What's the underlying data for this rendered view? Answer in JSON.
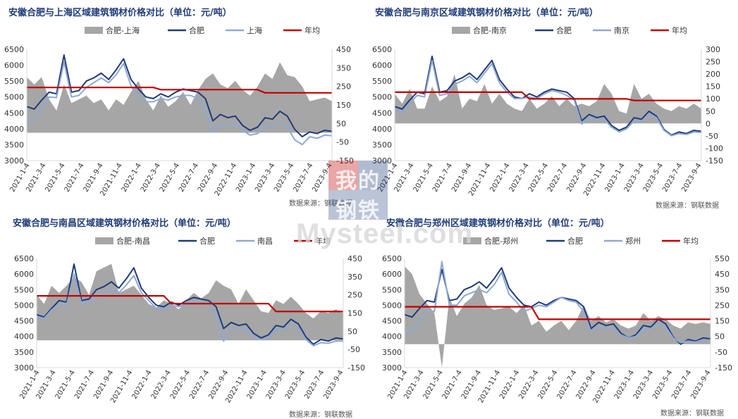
{
  "chart_data": [
    {
      "type": "line",
      "title": "安徽合肥与上海区域建筑钢材价格对比（单位：元/吨）",
      "source": "数据来源：钢联数据",
      "legend": [
        "合肥-上海",
        "合肥",
        "上海",
        "年均"
      ],
      "legend_position": "top",
      "y_left": {
        "min": 3000,
        "max": 6500,
        "ticks": [
          "3000",
          "3500",
          "4000",
          "4500",
          "5000",
          "5500",
          "6000",
          "6500"
        ]
      },
      "y_right": {
        "min": -150,
        "max": 450,
        "ticks": [
          "-150",
          "-50",
          "50",
          "150",
          "250",
          "350",
          "450"
        ]
      },
      "x_ticks": [
        "2021-1-4",
        "2021-3-4",
        "2021-5-4",
        "2021-7-4",
        "2021-9-4",
        "2021-11-4",
        "2022-1-4",
        "2022-3-4",
        "2022-5-4",
        "2022-7-4",
        "2022-9-4",
        "2022-11-4",
        "2023-1-4",
        "2023-3-4",
        "2023-5-4",
        "2023-7-4",
        "2023-9-4"
      ],
      "series": [
        {
          "name": "合肥",
          "values": [
            4700,
            4620,
            4900,
            5150,
            5100,
            6320,
            5150,
            5200,
            5500,
            5600,
            5750,
            5550,
            5850,
            6200,
            5550,
            5250,
            5000,
            4950,
            5100,
            5000,
            5150,
            5250,
            5200,
            5150,
            4950,
            4250,
            4450,
            4350,
            4400,
            4100,
            3950,
            4050,
            4350,
            4300,
            4550,
            4400,
            3980,
            3750,
            3900,
            3850,
            3950,
            3920
          ]
        },
        {
          "name": "上海",
          "values": [
            4350,
            4300,
            4600,
            5000,
            4980,
            6100,
            5000,
            5050,
            5300,
            5450,
            5600,
            5450,
            5700,
            6050,
            5350,
            4950,
            4850,
            4850,
            4950,
            4900,
            5000,
            5050,
            5050,
            4950,
            4600,
            3900,
            4150,
            4100,
            4150,
            3950,
            3800,
            3850,
            4100,
            4050,
            4200,
            4050,
            3650,
            3500,
            3750,
            3700,
            3800,
            3780
          ]
        },
        {
          "name": "年均",
          "values": [
            5300,
            5300,
            5300,
            5300,
            5300,
            5300,
            5300,
            5300,
            5300,
            5300,
            5300,
            5300,
            5300,
            5300,
            5300,
            5300,
            5300,
            5300,
            5230,
            5230,
            5230,
            5230,
            5230,
            5230,
            5230,
            5230,
            5230,
            5230,
            5230,
            5230,
            5230,
            5230,
            5130,
            5130,
            5130,
            5130,
            5130,
            5130,
            5130,
            5130,
            5130,
            5130
          ]
        },
        {
          "name": "合肥-上海",
          "axis": "right",
          "values": [
            300,
            260,
            300,
            180,
            120,
            260,
            160,
            180,
            200,
            160,
            180,
            120,
            180,
            150,
            220,
            280,
            180,
            120,
            200,
            140,
            170,
            220,
            150,
            230,
            290,
            320,
            260,
            240,
            280,
            230,
            200,
            250,
            320,
            290,
            380,
            310,
            300,
            250,
            170,
            180,
            190,
            170
          ]
        }
      ]
    },
    {
      "type": "line",
      "title": "安徽合肥与南京区域建筑钢材价格对比（单位：元/吨）",
      "source": "数据来源：钢联数据",
      "legend": [
        "合肥-南京",
        "合肥",
        "南京",
        "年均"
      ],
      "legend_position": "top",
      "y_left": {
        "min": 3000,
        "max": 6500,
        "ticks": [
          "3000",
          "3500",
          "4000",
          "4500",
          "5000",
          "5500",
          "6000",
          "6500"
        ]
      },
      "y_right": {
        "min": -150,
        "max": 300,
        "ticks": [
          "-150",
          "-100",
          "-50",
          "0",
          "50",
          "100",
          "150",
          "200",
          "250",
          "300"
        ]
      },
      "x_ticks": [
        "2021-1-4",
        "2021-3-4",
        "2021-5-4",
        "2021-7-4",
        "2021-9-4",
        "2021-11-4",
        "2022-1-4",
        "2022-3-4",
        "2022-5-4",
        "2022-7-4",
        "2022-9-4",
        "2022-11-4",
        "2023-1-4",
        "2023-3-4",
        "2023-5-4",
        "2023-7-4",
        "2023-9-4"
      ],
      "series": [
        {
          "name": "合肥",
          "values": [
            4700,
            4620,
            4900,
            5150,
            5100,
            6280,
            5150,
            5200,
            5500,
            5600,
            5750,
            5550,
            5850,
            6150,
            5550,
            5250,
            5000,
            4950,
            5100,
            5000,
            5150,
            5250,
            5200,
            5150,
            4950,
            4250,
            4450,
            4350,
            4400,
            4100,
            3950,
            4050,
            4350,
            4300,
            4550,
            4400,
            3980,
            3800,
            3900,
            3850,
            3950,
            3920
          ]
        },
        {
          "name": "南京",
          "values": [
            4600,
            4550,
            4800,
            5050,
            5000,
            6150,
            5050,
            5100,
            5400,
            5500,
            5650,
            5450,
            5750,
            6050,
            5450,
            5150,
            4950,
            4950,
            5000,
            4950,
            5100,
            5200,
            5150,
            5050,
            4900,
            4150,
            4350,
            4300,
            4300,
            4050,
            3900,
            4000,
            4250,
            4250,
            4450,
            4350,
            3950,
            3780,
            3850,
            3820,
            3900,
            3880
          ]
        },
        {
          "name": "年均",
          "values": [
            5150,
            5150,
            5150,
            5150,
            5150,
            5150,
            5150,
            5150,
            5150,
            5150,
            5150,
            5150,
            5150,
            5150,
            5150,
            5150,
            5150,
            5150,
            4940,
            4940,
            4940,
            4940,
            4940,
            4940,
            4940,
            4940,
            4940,
            4940,
            4940,
            4940,
            4940,
            4940,
            4890,
            4890,
            4890,
            4890,
            4890,
            4890,
            4890,
            4890,
            4890,
            4890
          ]
        },
        {
          "name": "合肥-南京",
          "axis": "right",
          "values": [
            120,
            80,
            140,
            60,
            60,
            150,
            90,
            110,
            200,
            60,
            100,
            90,
            160,
            80,
            120,
            80,
            60,
            50,
            100,
            60,
            80,
            110,
            70,
            100,
            70,
            80,
            70,
            90,
            160,
            120,
            50,
            40,
            160,
            100,
            120,
            80,
            60,
            50,
            70,
            60,
            80,
            60
          ]
        }
      ]
    },
    {
      "type": "line",
      "title": "安徽合肥与南昌区域建筑钢材价格对比（单位：元/吨）",
      "source": "数据来源：钢联数据",
      "legend": [
        "合肥-南昌",
        "合肥",
        "南昌",
        "年均"
      ],
      "legend_position": "top",
      "y_left": {
        "min": 3000,
        "max": 6500,
        "ticks": [
          "3000",
          "3500",
          "4000",
          "4500",
          "5000",
          "5500",
          "6000",
          "6500"
        ]
      },
      "y_right": {
        "min": -150,
        "max": 450,
        "ticks": [
          "-150",
          "-50",
          "50",
          "150",
          "250",
          "350",
          "450"
        ]
      },
      "x_ticks": [
        "2021-1-4",
        "2021-3-4",
        "2021-5-4",
        "2021-7-4",
        "2021-9-4",
        "2021-11-4",
        "2022-1-4",
        "2022-3-4",
        "2022-5-4",
        "2022-7-4",
        "2022-9-4",
        "2022-11-4",
        "2023-1-4",
        "2023-3-4",
        "2023-5-4",
        "2023-7-4",
        "2023-9-4"
      ],
      "series": [
        {
          "name": "合肥",
          "values": [
            4700,
            4620,
            4900,
            5150,
            5100,
            6320,
            5150,
            5200,
            5500,
            5600,
            5750,
            5550,
            5850,
            6200,
            5550,
            5250,
            5000,
            4950,
            5100,
            5000,
            5150,
            5250,
            5200,
            5150,
            4950,
            4250,
            4450,
            4350,
            4400,
            4100,
            3950,
            4050,
            4350,
            4300,
            4550,
            4400,
            3980,
            3750,
            3900,
            3850,
            3950,
            3920
          ]
        },
        {
          "name": "南昌",
          "values": [
            4650,
            4580,
            4850,
            5050,
            5000,
            6000,
            5050,
            5050,
            5300,
            5350,
            5500,
            5400,
            5650,
            5950,
            5400,
            5150,
            4900,
            4900,
            5000,
            4950,
            5050,
            5150,
            5100,
            5050,
            4700,
            3850,
            4250,
            4200,
            4250,
            4000,
            3900,
            3950,
            4250,
            4200,
            4400,
            4300,
            3900,
            3700,
            3800,
            3780,
            3850,
            3850
          ]
        },
        {
          "name": "年均",
          "values": [
            5300,
            5300,
            5300,
            5300,
            5300,
            5300,
            5300,
            5300,
            5300,
            5300,
            5300,
            5300,
            5300,
            5300,
            5300,
            5300,
            5300,
            5300,
            5050,
            5050,
            5050,
            5050,
            5050,
            5050,
            5050,
            5050,
            5050,
            5050,
            5050,
            5050,
            5050,
            5050,
            4800,
            4800,
            4800,
            4800,
            4800,
            4800,
            4800,
            4800,
            4800,
            4800
          ]
        },
        {
          "name": "合肥-南昌",
          "axis": "right",
          "values": [
            250,
            200,
            300,
            260,
            300,
            350,
            320,
            250,
            380,
            400,
            420,
            260,
            280,
            300,
            250,
            200,
            180,
            220,
            200,
            170,
            220,
            260,
            230,
            260,
            330,
            300,
            280,
            200,
            280,
            220,
            160,
            150,
            220,
            200,
            240,
            200,
            150,
            120,
            160,
            150,
            170,
            150
          ]
        }
      ]
    },
    {
      "type": "line",
      "title": "安徽合肥与郑州区域建筑钢材价格对比（单位：元/吨）",
      "source": "数据来源：钢联数据",
      "legend": [
        "合肥-郑州",
        "合肥",
        "郑州",
        "年均"
      ],
      "legend_position": "top",
      "y_left": {
        "min": 3000,
        "max": 6500,
        "ticks": [
          "3000",
          "3500",
          "4000",
          "4500",
          "5000",
          "5500",
          "6000",
          "6500"
        ]
      },
      "y_right": {
        "min": -150,
        "max": 550,
        "ticks": [
          "-150",
          "-50",
          "50",
          "150",
          "250",
          "350",
          "450",
          "550"
        ]
      },
      "x_ticks": [
        "2021-1-4",
        "2021-3-4",
        "2021-5-4",
        "2021-7-4",
        "2021-9-4",
        "2021-11-4",
        "2022-1-4",
        "2022-3-4",
        "2022-5-4",
        "2022-7-4",
        "2022-9-4",
        "2022-11-4",
        "2023-1-4",
        "2023-3-4",
        "2023-5-4",
        "2023-7-4",
        "2023-9-4"
      ],
      "series": [
        {
          "name": "合肥",
          "values": [
            4700,
            4620,
            4900,
            5150,
            5100,
            6150,
            5150,
            5200,
            5500,
            5600,
            5750,
            5550,
            5850,
            6200,
            5550,
            5250,
            5000,
            4950,
            5100,
            5000,
            5150,
            5250,
            5200,
            5150,
            4950,
            4250,
            4450,
            4350,
            4400,
            4100,
            3950,
            4050,
            4350,
            4300,
            4550,
            4400,
            3980,
            3750,
            3900,
            3850,
            3950,
            3920
          ]
        },
        {
          "name": "郑州",
          "values": [
            4200,
            4150,
            4500,
            4850,
            4800,
            6400,
            5000,
            5000,
            5300,
            5400,
            5500,
            5400,
            5650,
            6050,
            5350,
            5100,
            4800,
            4900,
            5000,
            4950,
            5100,
            5250,
            5150,
            5100,
            4800,
            4150,
            4300,
            4250,
            4250,
            4050,
            3950,
            4000,
            4250,
            4250,
            4450,
            4300,
            3950,
            3800,
            3850,
            3820,
            3900,
            3880
          ]
        },
        {
          "name": "年均",
          "values": [
            4950,
            4950,
            4950,
            4950,
            4950,
            4950,
            4950,
            4950,
            4950,
            4950,
            4950,
            4950,
            4950,
            4950,
            4950,
            4950,
            4950,
            4950,
            4550,
            4550,
            4550,
            4550,
            4550,
            4550,
            4550,
            4550,
            4550,
            4550,
            4550,
            4550,
            4550,
            4550,
            4550,
            4550,
            4550,
            4550,
            4550,
            4550,
            4550,
            4550,
            4550,
            4550
          ]
        },
        {
          "name": "合肥-郑州",
          "axis": "right",
          "values": [
            500,
            450,
            320,
            260,
            200,
            -150,
            300,
            180,
            260,
            300,
            380,
            250,
            220,
            230,
            240,
            200,
            250,
            120,
            150,
            80,
            120,
            150,
            90,
            150,
            250,
            150,
            180,
            140,
            160,
            120,
            100,
            120,
            200,
            150,
            180,
            160,
            120,
            100,
            140,
            130,
            140,
            130
          ]
        }
      ]
    }
  ],
  "watermark": {
    "line1a": "我的",
    "line1b": "钢铁",
    "brand": "Mysteel.com"
  },
  "colors": {
    "diff": "#a6a6a6",
    "hefei": "#1f3b79",
    "city": "#8fa9d3",
    "avg": "#c00000",
    "axis": "#d9d9d9",
    "text": "#333333"
  }
}
